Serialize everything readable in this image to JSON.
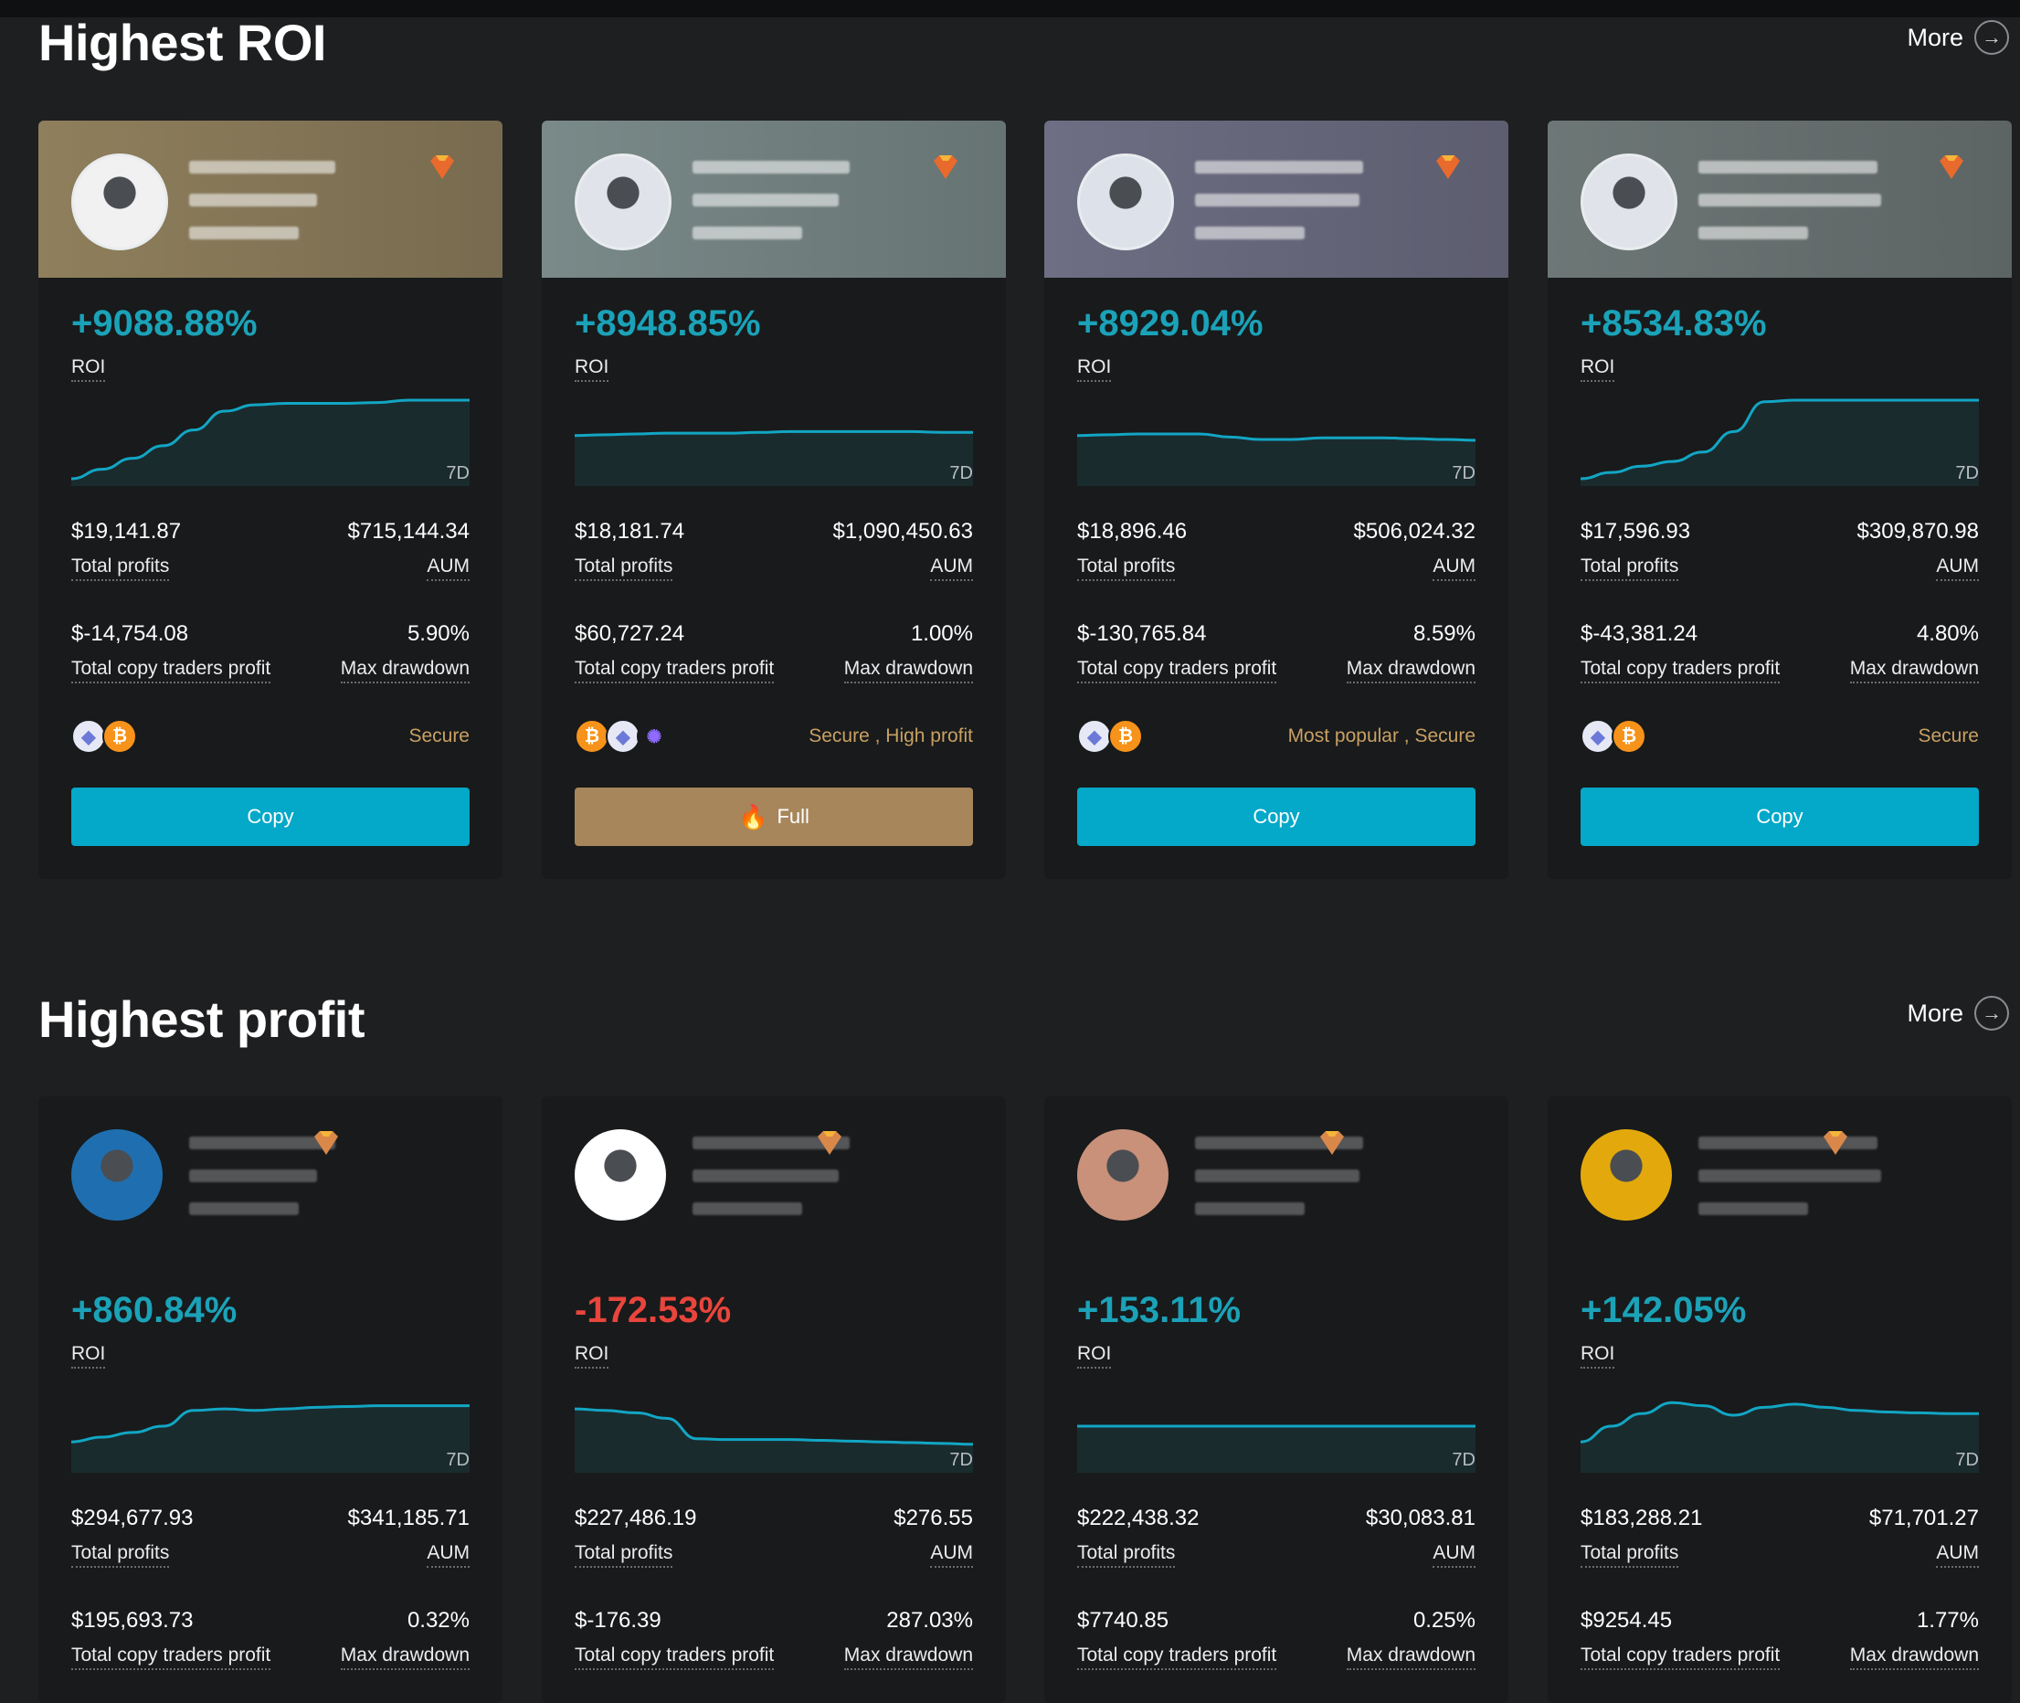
{
  "sections": [
    {
      "title": "Highest ROI",
      "more": "More",
      "cards": [
        {
          "roi": "+9088.88%",
          "roi_sign": "pos",
          "roi_label": "ROI",
          "period": "7D",
          "chart": [
            0,
            0.12,
            0.26,
            0.42,
            0.62,
            0.86,
            0.94,
            0.96,
            0.96,
            0.96,
            0.97,
            1,
            1,
            1
          ],
          "total_profits": "$19,141.87",
          "total_profits_label": "Total profits",
          "aum": "$715,144.34",
          "aum_label": "AUM",
          "copy_profit": "$-14,754.08",
          "copy_profit_label": "Total copy traders profit",
          "drawdown": "5.90%",
          "drawdown_label": "Max drawdown",
          "coins": [
            "eth",
            "btc"
          ],
          "tags": "Secure",
          "button": "Copy",
          "button_type": "copy",
          "header_color": "#8f7f5c"
        },
        {
          "roi": "+8948.85%",
          "roi_sign": "pos",
          "roi_label": "ROI",
          "period": "7D",
          "chart": [
            0.55,
            0.56,
            0.57,
            0.58,
            0.58,
            0.58,
            0.59,
            0.6,
            0.6,
            0.6,
            0.6,
            0.6,
            0.59,
            0.59
          ],
          "total_profits": "$18,181.74",
          "total_profits_label": "Total profits",
          "aum": "$1,090,450.63",
          "aum_label": "AUM",
          "copy_profit": "$60,727.24",
          "copy_profit_label": "Total copy traders profit",
          "drawdown": "1.00%",
          "drawdown_label": "Max drawdown",
          "coins": [
            "btc",
            "eth",
            "dot"
          ],
          "tags": "Secure , High profit",
          "button": "Full",
          "button_type": "full",
          "header_color": "#7a8a89"
        },
        {
          "roi": "+8929.04%",
          "roi_sign": "pos",
          "roi_label": "ROI",
          "period": "7D",
          "chart": [
            0.55,
            0.56,
            0.57,
            0.57,
            0.57,
            0.53,
            0.5,
            0.5,
            0.52,
            0.52,
            0.52,
            0.51,
            0.5,
            0.49
          ],
          "total_profits": "$18,896.46",
          "total_profits_label": "Total profits",
          "aum": "$506,024.32",
          "aum_label": "AUM",
          "copy_profit": "$-130,765.84",
          "copy_profit_label": "Total copy traders profit",
          "drawdown": "8.59%",
          "drawdown_label": "Max drawdown",
          "coins": [
            "eth",
            "btc"
          ],
          "tags": "Most popular , Secure",
          "button": "Copy",
          "button_type": "copy",
          "header_color": "#6e6e84"
        },
        {
          "roi": "+8534.83%",
          "roi_sign": "pos",
          "roi_label": "ROI",
          "period": "7D",
          "chart": [
            0,
            0.08,
            0.16,
            0.22,
            0.34,
            0.6,
            0.98,
            1,
            1,
            1,
            1,
            1,
            1,
            1
          ],
          "total_profits": "$17,596.93",
          "total_profits_label": "Total profits",
          "aum": "$309,870.98",
          "aum_label": "AUM",
          "copy_profit": "$-43,381.24",
          "copy_profit_label": "Total copy traders profit",
          "drawdown": "4.80%",
          "drawdown_label": "Max drawdown",
          "coins": [
            "eth",
            "btc"
          ],
          "tags": "Secure",
          "button": "Copy",
          "button_type": "copy",
          "header_color": "#6d7776"
        }
      ]
    },
    {
      "title": "Highest profit",
      "more": "More",
      "cards": [
        {
          "roi": "+860.84%",
          "roi_sign": "pos",
          "roi_label": "ROI",
          "period": "7D",
          "chart": [
            0.3,
            0.36,
            0.42,
            0.5,
            0.7,
            0.72,
            0.7,
            0.72,
            0.74,
            0.75,
            0.76,
            0.76,
            0.76,
            0.76
          ],
          "total_profits": "$294,677.93",
          "total_profits_label": "Total profits",
          "aum": "$341,185.71",
          "aum_label": "AUM",
          "copy_profit": "$195,693.73",
          "copy_profit_label": "Total copy traders profit",
          "drawdown": "0.32%",
          "drawdown_label": "Max drawdown"
        },
        {
          "roi": "-172.53%",
          "roi_sign": "neg",
          "roi_label": "ROI",
          "period": "7D",
          "chart": [
            0.72,
            0.7,
            0.67,
            0.6,
            0.34,
            0.33,
            0.33,
            0.33,
            0.32,
            0.31,
            0.3,
            0.29,
            0.28,
            0.27
          ],
          "total_profits": "$227,486.19",
          "total_profits_label": "Total profits",
          "aum": "$276.55",
          "aum_label": "AUM",
          "copy_profit": "$-176.39",
          "copy_profit_label": "Total copy traders profit",
          "drawdown": "287.03%",
          "drawdown_label": "Max drawdown"
        },
        {
          "roi": "+153.11%",
          "roi_sign": "pos",
          "roi_label": "ROI",
          "period": "7D",
          "chart": [
            0.5,
            0.5,
            0.5,
            0.5,
            0.5,
            0.5,
            0.5,
            0.5,
            0.5,
            0.5,
            0.5,
            0.5,
            0.5,
            0.5
          ],
          "total_profits": "$222,438.32",
          "total_profits_label": "Total profits",
          "aum": "$30,083.81",
          "aum_label": "AUM",
          "copy_profit": "$7740.85",
          "copy_profit_label": "Total copy traders profit",
          "drawdown": "0.25%",
          "drawdown_label": "Max drawdown"
        },
        {
          "roi": "+142.05%",
          "roi_sign": "pos",
          "roi_label": "ROI",
          "period": "7D",
          "chart": [
            0.3,
            0.5,
            0.66,
            0.8,
            0.76,
            0.64,
            0.74,
            0.78,
            0.74,
            0.7,
            0.68,
            0.67,
            0.66,
            0.66
          ],
          "total_profits": "$183,288.21",
          "total_profits_label": "Total profits",
          "aum": "$71,701.27",
          "aum_label": "AUM",
          "copy_profit": "$9254.45",
          "copy_profit_label": "Total copy traders profit",
          "drawdown": "1.77%",
          "drawdown_label": "Max drawdown"
        }
      ]
    }
  ],
  "colors": {
    "accent": "#04a8c8",
    "positive": "#1ba2b8",
    "negative": "#e8453c",
    "tag": "#c9a063",
    "full": "#a7865b"
  }
}
